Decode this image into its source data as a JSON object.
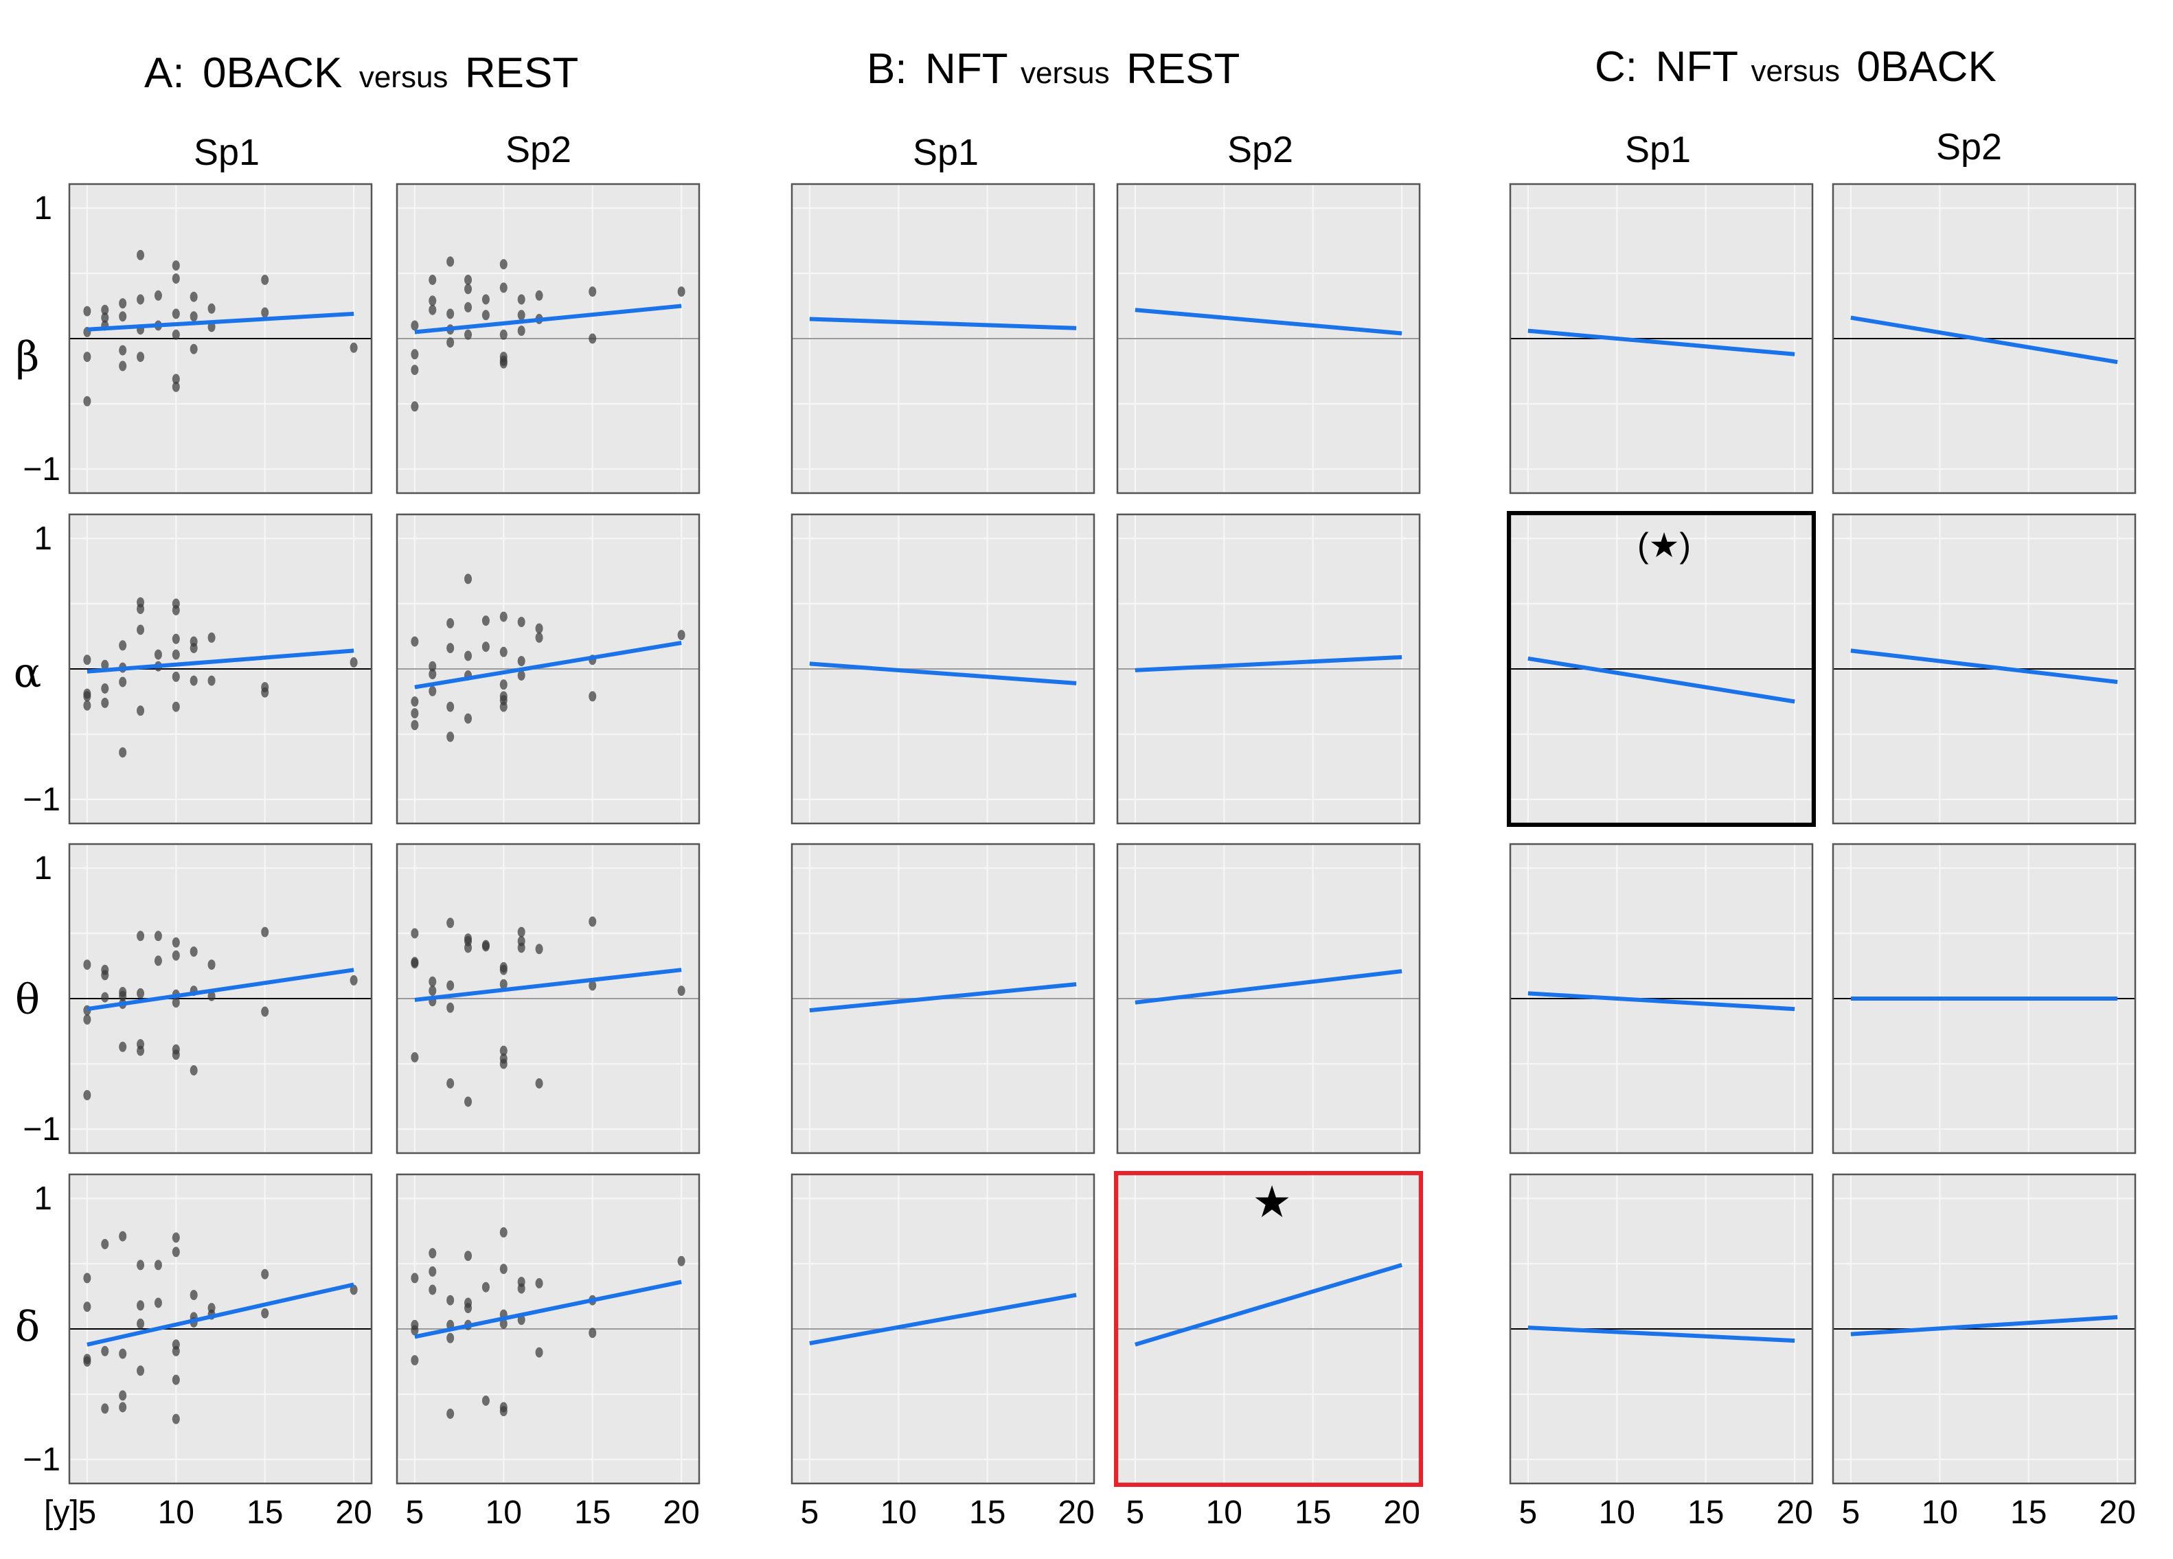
{
  "chart_data": {
    "type": "scatter",
    "groups": [
      {
        "id": "A",
        "title": {
          "prefix": "A:",
          "left": "0BACK",
          "mid": "versus",
          "right": "REST"
        },
        "columns": [
          "Sp1",
          "Sp2"
        ]
      },
      {
        "id": "B",
        "title": {
          "prefix": "B:",
          "left": "NFT",
          "mid": "versus",
          "right": "REST"
        },
        "columns": [
          "Sp1",
          "Sp2"
        ]
      },
      {
        "id": "C",
        "title": {
          "prefix": "C:",
          "left": "NFT",
          "mid": "versus",
          "right": "0BACK"
        },
        "columns": [
          "Sp1",
          "Sp2"
        ]
      }
    ],
    "rows": [
      "β",
      "α",
      "θ",
      "δ"
    ],
    "xlim": [
      4,
      21
    ],
    "ylim": [
      -1,
      1
    ],
    "x_ticks": [
      5,
      10,
      15,
      20
    ],
    "y_ticks": [
      1,
      -1
    ],
    "x_unit": "[y]",
    "grid": true,
    "points_x": [
      5,
      5,
      5,
      5,
      6,
      6,
      6,
      7,
      7,
      7,
      7,
      8,
      8,
      8,
      8,
      9,
      9,
      10,
      10,
      10,
      10,
      10,
      10,
      11,
      11,
      11,
      12,
      12,
      15,
      15,
      20
    ],
    "panels": [
      {
        "group": "A",
        "col": "Sp1",
        "row": "β",
        "line": [
          0.07,
          0.19
        ],
        "y": [
          0.21,
          0.05,
          -0.14,
          -0.48,
          0.1,
          0.16,
          0.22,
          0.27,
          0.17,
          -0.09,
          -0.21,
          0.64,
          0.3,
          0.07,
          -0.14,
          0.1,
          0.33,
          0.56,
          0.46,
          -0.31,
          -0.37,
          0.19,
          0.03,
          0.17,
          -0.08,
          0.32,
          0.09,
          0.23,
          0.45,
          0.2,
          -0.07
        ]
      },
      {
        "group": "A",
        "col": "Sp2",
        "row": "β",
        "line": [
          0.05,
          0.25
        ],
        "y": [
          0.1,
          -0.12,
          -0.24,
          -0.52,
          0.29,
          0.45,
          0.22,
          0.59,
          0.07,
          0.19,
          -0.03,
          0.45,
          0.38,
          0.03,
          0.24,
          0.18,
          0.3,
          0.57,
          0.39,
          -0.14,
          -0.19,
          0.03,
          -0.17,
          0.18,
          0.06,
          0.3,
          0.33,
          0.15,
          0.36,
          0.0,
          0.36
        ]
      },
      {
        "group": "A",
        "col": "Sp1",
        "row": "α",
        "line": [
          -0.02,
          0.14
        ],
        "y": [
          0.07,
          -0.19,
          -0.21,
          -0.28,
          0.03,
          -0.15,
          -0.26,
          -0.64,
          0.18,
          0.01,
          -0.1,
          0.51,
          0.46,
          0.3,
          -0.32,
          0.02,
          0.11,
          0.5,
          0.45,
          0.23,
          0.11,
          -0.06,
          -0.29,
          0.21,
          0.16,
          -0.09,
          0.24,
          -0.09,
          -0.18,
          -0.14,
          0.05
        ]
      },
      {
        "group": "A",
        "col": "Sp2",
        "row": "α",
        "line": [
          -0.14,
          0.2
        ],
        "y": [
          0.21,
          -0.25,
          -0.34,
          -0.43,
          -0.17,
          0.02,
          -0.04,
          -0.52,
          0.35,
          0.16,
          -0.29,
          0.69,
          0.1,
          -0.05,
          -0.38,
          0.37,
          0.17,
          0.4,
          0.13,
          -0.21,
          -0.29,
          -0.12,
          -0.24,
          0.36,
          0.06,
          -0.05,
          0.24,
          0.31,
          0.07,
          -0.21,
          0.26
        ]
      },
      {
        "group": "A",
        "col": "Sp1",
        "row": "θ",
        "line": [
          -0.08,
          0.22
        ],
        "y": [
          0.26,
          -0.16,
          -0.09,
          -0.74,
          0.22,
          0.18,
          0.01,
          -0.37,
          0.02,
          -0.04,
          0.05,
          0.48,
          -0.35,
          0.04,
          -0.4,
          0.48,
          0.29,
          0.33,
          0.43,
          -0.39,
          -0.43,
          0.03,
          -0.03,
          0.36,
          0.06,
          -0.55,
          0.26,
          0.02,
          0.51,
          -0.1,
          0.14
        ]
      },
      {
        "group": "A",
        "col": "Sp2",
        "row": "θ",
        "line": [
          -0.01,
          0.22
        ],
        "y": [
          0.28,
          0.5,
          0.27,
          -0.45,
          0.13,
          0.06,
          -0.02,
          0.58,
          0.1,
          -0.65,
          -0.07,
          0.46,
          -0.79,
          0.39,
          0.44,
          0.4,
          0.41,
          0.22,
          -0.46,
          -0.5,
          -0.4,
          0.24,
          0.11,
          0.51,
          0.39,
          0.44,
          -0.65,
          0.38,
          0.59,
          0.1,
          0.06
        ]
      },
      {
        "group": "A",
        "col": "Sp1",
        "row": "δ",
        "line": [
          -0.12,
          0.34
        ],
        "y": [
          -0.23,
          0.17,
          -0.25,
          0.39,
          0.65,
          -0.17,
          -0.61,
          -0.51,
          -0.6,
          0.71,
          -0.19,
          0.18,
          0.04,
          -0.32,
          0.49,
          0.2,
          0.49,
          0.59,
          0.7,
          -0.12,
          -0.17,
          -0.39,
          -0.69,
          0.26,
          0.09,
          0.05,
          0.11,
          0.16,
          0.42,
          0.12,
          0.3
        ]
      },
      {
        "group": "A",
        "col": "Sp2",
        "row": "δ",
        "line": [
          -0.06,
          0.36
        ],
        "y": [
          -0.24,
          0.39,
          0.03,
          -0.01,
          0.44,
          0.3,
          0.58,
          -0.07,
          0.03,
          0.22,
          -0.65,
          0.03,
          0.56,
          0.2,
          0.16,
          -0.55,
          0.32,
          0.04,
          0.11,
          -0.6,
          0.46,
          0.74,
          -0.63,
          0.31,
          0.36,
          0.07,
          -0.18,
          0.35,
          0.22,
          -0.03,
          0.52
        ]
      }
    ],
    "static_panels": [
      {
        "group": "B",
        "col": "Sp1",
        "row": "β",
        "line": [
          0.15,
          0.08
        ]
      },
      {
        "group": "B",
        "col": "Sp2",
        "row": "β",
        "line": [
          0.22,
          0.04
        ]
      },
      {
        "group": "C",
        "col": "Sp1",
        "row": "β",
        "line": [
          0.06,
          -0.12
        ]
      },
      {
        "group": "C",
        "col": "Sp2",
        "row": "β",
        "line": [
          0.16,
          -0.18
        ]
      },
      {
        "group": "B",
        "col": "Sp1",
        "row": "α",
        "line": [
          0.04,
          -0.11
        ]
      },
      {
        "group": "B",
        "col": "Sp2",
        "row": "α",
        "line": [
          -0.01,
          0.09
        ]
      },
      {
        "group": "C",
        "col": "Sp1",
        "row": "α",
        "line": [
          0.08,
          -0.25
        ]
      },
      {
        "group": "C",
        "col": "Sp2",
        "row": "α",
        "line": [
          0.14,
          -0.1
        ]
      },
      {
        "group": "B",
        "col": "Sp1",
        "row": "θ",
        "line": [
          -0.09,
          0.11
        ]
      },
      {
        "group": "B",
        "col": "Sp2",
        "row": "θ",
        "line": [
          -0.03,
          0.21
        ]
      },
      {
        "group": "C",
        "col": "Sp1",
        "row": "θ",
        "line": [
          0.04,
          -0.08
        ]
      },
      {
        "group": "C",
        "col": "Sp2",
        "row": "θ",
        "line": [
          0.0,
          0.0
        ]
      },
      {
        "group": "B",
        "col": "Sp1",
        "row": "δ",
        "line": [
          -0.11,
          0.26
        ]
      },
      {
        "group": "B",
        "col": "Sp2",
        "row": "δ",
        "line": [
          -0.12,
          0.49
        ]
      },
      {
        "group": "C",
        "col": "Sp1",
        "row": "δ",
        "line": [
          0.01,
          -0.09
        ]
      },
      {
        "group": "C",
        "col": "Sp2",
        "row": "δ",
        "line": [
          -0.04,
          0.09
        ]
      }
    ],
    "highlights": [
      {
        "group": "C",
        "col": "Sp1",
        "row": "α",
        "marker": "(★)",
        "style": "black-frame"
      },
      {
        "group": "B",
        "col": "Sp2",
        "row": "δ",
        "marker": "★",
        "style": "red-frame"
      }
    ]
  }
}
